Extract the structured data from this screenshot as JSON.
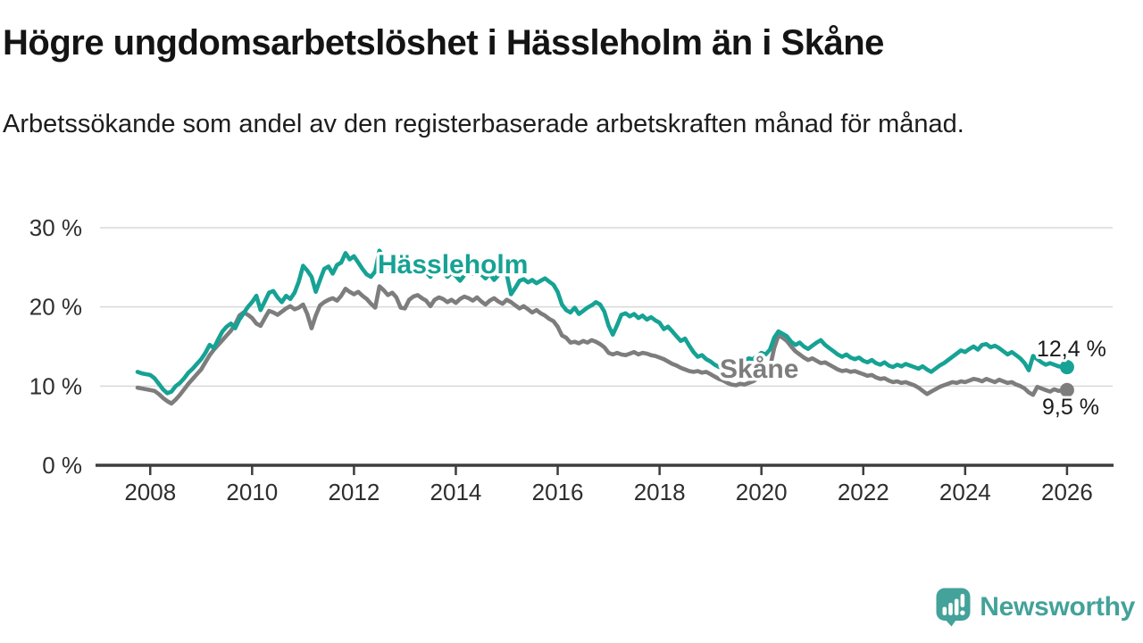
{
  "title": "Högre ungdomsarbetslöshet i Hässleholm än i Skåne",
  "subtitle": "Arbetssökande som andel av den registerbaserade arbetskraften månad för månad.",
  "branding": {
    "wordmark": "Newsworthy",
    "logo_icon": "speech-bubble-bar-chart-icon",
    "logo_color": "#43a299"
  },
  "colors": {
    "hassleholm_line": "#16a294",
    "skane_line": "#7d7d7d",
    "grid_line": "#d9d9d9",
    "axis_line": "#3d3d3d",
    "label_text": "#1a1a1a",
    "tick_text": "#2e2e2e"
  },
  "chart_data": {
    "type": "line",
    "title": "Högre ungdomsarbetslöshet i Hässleholm än i Skåne",
    "subtitle": "Arbetssökande som andel av den registerbaserade arbetskraften månad för månad.",
    "unit": "%",
    "frequency": "monthly",
    "x_start": "2007-10",
    "x_end": "2026-01",
    "ylim": [
      0,
      30
    ],
    "grid": "horizontal",
    "legend_position": "inline-labels",
    "y_ticks": [
      0,
      10,
      20,
      30
    ],
    "y_tick_labels": [
      "0 %",
      "10 %",
      "20 %",
      "30 %"
    ],
    "x_tick_labels": [
      "2008",
      "2010",
      "2012",
      "2014",
      "2016",
      "2018",
      "2020",
      "2022",
      "2024",
      "2026"
    ],
    "series": [
      {
        "name": "Hässleholm",
        "color": "#16a294",
        "end_label": "12,4 %",
        "last_value": 12.4,
        "values": [
          11.8,
          11.6,
          11.5,
          11.4,
          11.0,
          10.3,
          9.6,
          9.1,
          9.3,
          10.0,
          10.4,
          11.0,
          11.7,
          12.2,
          12.8,
          13.4,
          14.2,
          15.2,
          14.8,
          15.9,
          16.9,
          17.5,
          17.9,
          17.3,
          18.4,
          19.2,
          20.0,
          20.6,
          21.4,
          19.6,
          20.7,
          21.8,
          22.0,
          21.2,
          20.6,
          21.4,
          21.0,
          21.8,
          23.2,
          25.2,
          24.6,
          23.8,
          21.9,
          23.4,
          24.8,
          25.1,
          24.2,
          25.3,
          25.6,
          26.8,
          26.0,
          26.4,
          25.6,
          24.8,
          24.1,
          23.8,
          24.5,
          27.1,
          26.2,
          25.2,
          24.6,
          24.9,
          24.1,
          25.6,
          25.9,
          25.2,
          24.6,
          25.0,
          24.4,
          23.8,
          24.6,
          25.1,
          24.4,
          23.8,
          24.3,
          23.9,
          23.3,
          24.0,
          24.5,
          24.2,
          24.6,
          24.1,
          23.6,
          24.2,
          23.4,
          24.0,
          24.3,
          24.1,
          21.6,
          22.4,
          23.3,
          23.5,
          23.1,
          23.4,
          23.0,
          23.3,
          23.6,
          23.2,
          22.8,
          21.9,
          20.3,
          19.6,
          19.3,
          19.9,
          19.1,
          19.5,
          19.9,
          20.2,
          20.6,
          20.3,
          19.4,
          17.6,
          16.5,
          17.7,
          19.0,
          19.2,
          18.8,
          19.1,
          18.6,
          18.9,
          18.4,
          18.7,
          18.3,
          18.0,
          17.2,
          17.5,
          16.9,
          16.3,
          15.7,
          16.0,
          15.1,
          14.3,
          13.7,
          13.9,
          13.4,
          13.1,
          12.7,
          12.4,
          12.5,
          12.9,
          12.6,
          13.0,
          13.3,
          13.1,
          13.5,
          13.4,
          13.8,
          14.2,
          14.0,
          14.6,
          16.1,
          16.9,
          16.6,
          16.3,
          15.6,
          15.2,
          15.5,
          15.0,
          14.7,
          15.1,
          15.5,
          15.8,
          15.2,
          14.8,
          14.4,
          14.0,
          13.7,
          14.0,
          13.6,
          13.4,
          13.6,
          13.2,
          13.0,
          13.3,
          12.9,
          12.7,
          13.0,
          12.6,
          12.4,
          12.7,
          12.5,
          12.8,
          12.6,
          12.4,
          12.2,
          12.5,
          12.1,
          11.8,
          12.2,
          12.6,
          12.9,
          13.3,
          13.7,
          14.1,
          14.5,
          14.3,
          14.7,
          15.0,
          14.6,
          15.2,
          15.3,
          14.9,
          15.1,
          14.8,
          14.4,
          14.0,
          14.3,
          13.9,
          13.5,
          12.9,
          12.0,
          13.8,
          13.4,
          13.0,
          12.7,
          12.9,
          12.7,
          12.5,
          12.4,
          12.4
        ]
      },
      {
        "name": "Skåne",
        "color": "#7d7d7d",
        "end_label": "9,5 %",
        "last_value": 9.5,
        "values": [
          9.8,
          9.7,
          9.6,
          9.5,
          9.4,
          9.0,
          8.5,
          8.1,
          7.8,
          8.3,
          8.9,
          9.6,
          10.3,
          10.9,
          11.5,
          12.1,
          13.0,
          13.9,
          14.6,
          15.2,
          15.8,
          16.4,
          17.0,
          17.8,
          18.9,
          19.3,
          19.0,
          18.6,
          17.9,
          17.6,
          18.6,
          19.5,
          19.3,
          19.0,
          19.4,
          19.8,
          20.1,
          19.7,
          19.9,
          20.3,
          19.1,
          17.3,
          18.9,
          20.2,
          20.6,
          20.9,
          21.1,
          20.8,
          21.4,
          22.3,
          21.9,
          21.6,
          21.9,
          21.4,
          21.0,
          20.4,
          19.9,
          22.6,
          22.1,
          21.5,
          21.8,
          21.2,
          19.9,
          19.8,
          20.9,
          21.3,
          21.5,
          21.1,
          20.8,
          20.1,
          20.9,
          21.2,
          21.0,
          20.6,
          20.9,
          20.5,
          21.0,
          21.3,
          21.1,
          20.8,
          21.2,
          20.7,
          20.3,
          20.8,
          21.1,
          20.7,
          20.4,
          20.9,
          20.6,
          20.2,
          19.8,
          20.1,
          19.7,
          19.3,
          19.6,
          19.2,
          18.9,
          18.5,
          18.2,
          17.5,
          16.4,
          16.1,
          15.5,
          15.6,
          15.4,
          15.7,
          15.5,
          15.8,
          15.6,
          15.3,
          14.9,
          14.2,
          14.0,
          14.2,
          14.0,
          13.9,
          14.1,
          14.3,
          14.0,
          14.2,
          14.1,
          13.9,
          13.8,
          13.6,
          13.4,
          13.1,
          12.8,
          12.6,
          12.3,
          12.1,
          11.9,
          11.8,
          11.9,
          11.7,
          11.8,
          11.5,
          11.2,
          10.9,
          10.7,
          10.4,
          10.2,
          10.1,
          10.3,
          10.2,
          10.4,
          10.6,
          10.9,
          11.2,
          11.5,
          12.3,
          14.8,
          16.4,
          16.1,
          15.7,
          15.0,
          14.4,
          14.0,
          13.6,
          13.3,
          13.5,
          13.2,
          12.9,
          13.0,
          12.7,
          12.4,
          12.1,
          11.9,
          12.0,
          11.8,
          11.9,
          11.7,
          11.5,
          11.3,
          11.4,
          11.1,
          10.9,
          11.0,
          10.7,
          10.5,
          10.6,
          10.4,
          10.5,
          10.3,
          10.1,
          9.8,
          9.4,
          9.0,
          9.3,
          9.6,
          9.9,
          10.1,
          10.3,
          10.5,
          10.4,
          10.6,
          10.5,
          10.7,
          10.9,
          10.8,
          10.6,
          10.9,
          10.7,
          10.5,
          10.8,
          10.6,
          10.4,
          10.5,
          10.2,
          10.0,
          9.7,
          9.2,
          8.9,
          9.9,
          9.7,
          9.5,
          9.3,
          9.6,
          9.4,
          9.5,
          9.5
        ]
      }
    ]
  }
}
